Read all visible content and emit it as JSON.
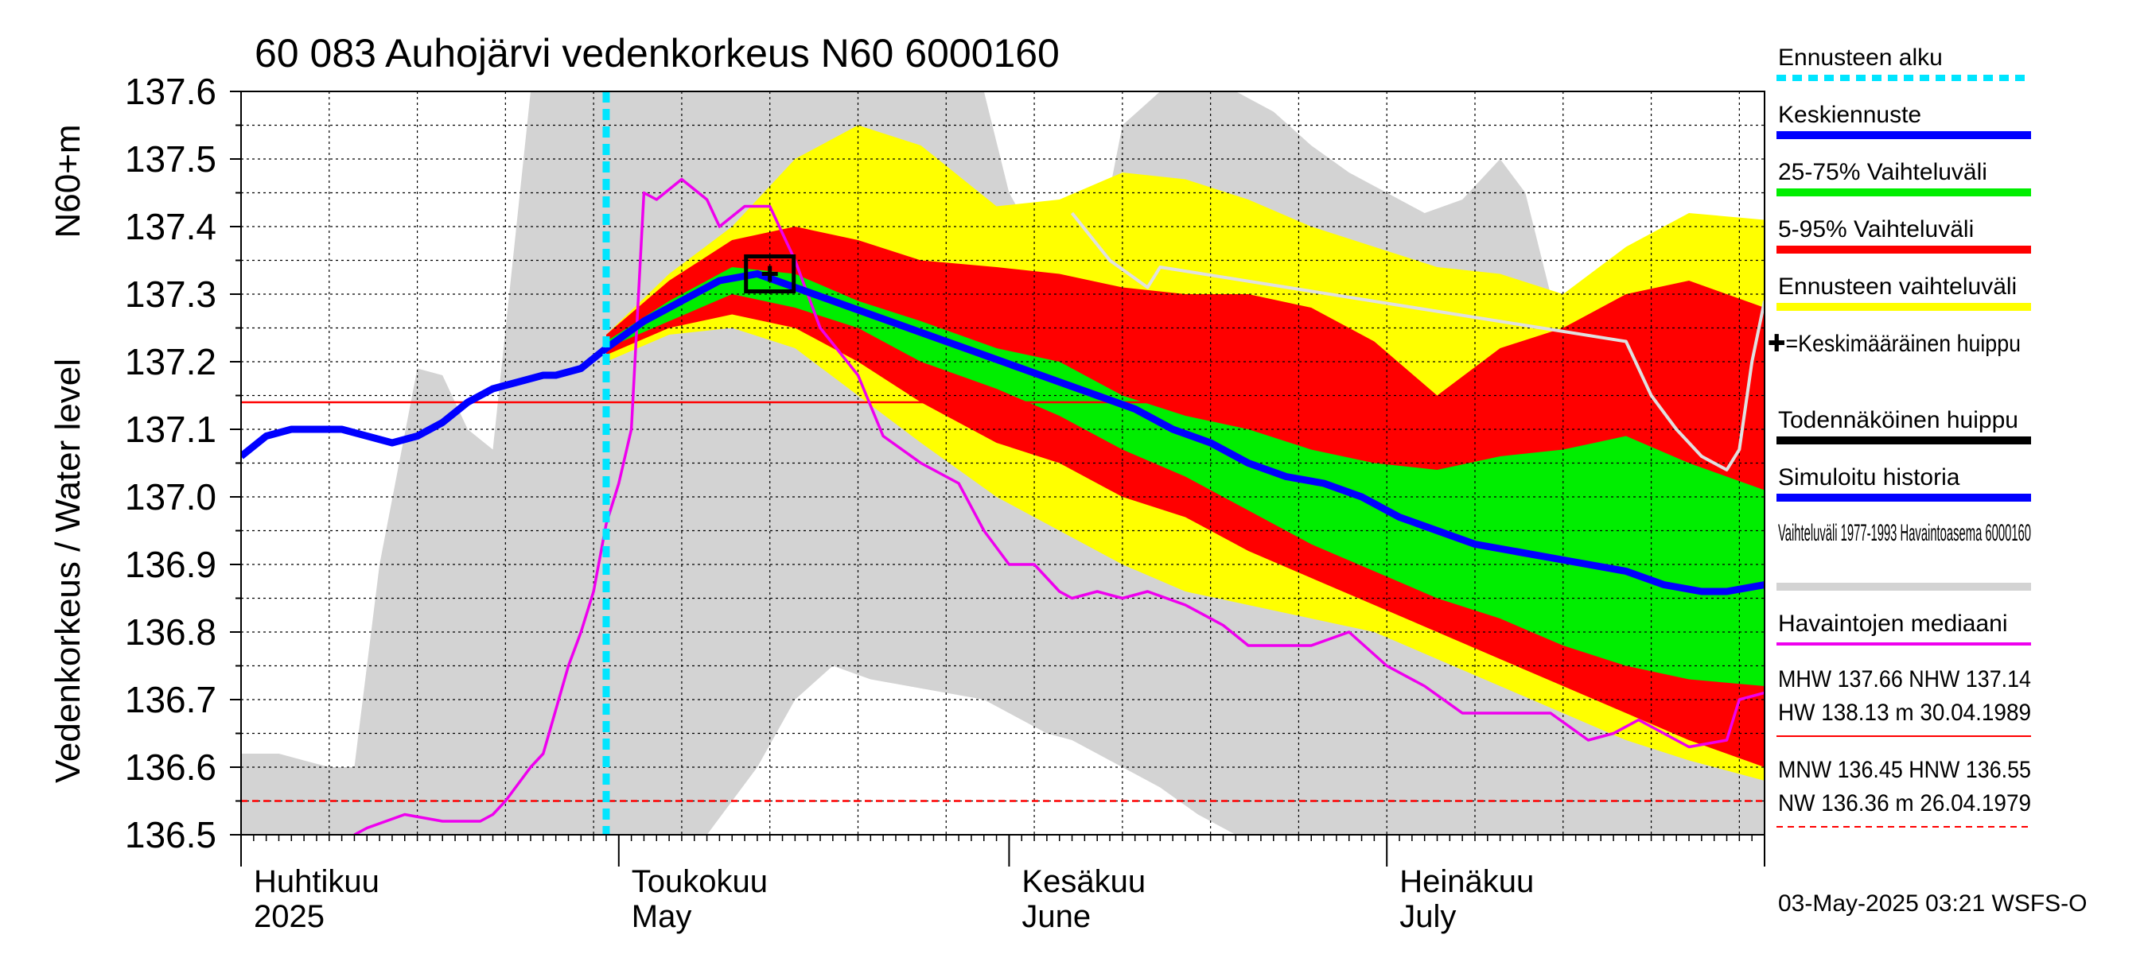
{
  "chart_data": {
    "type": "area",
    "title": "60 083 Auhojärvi vedenkorkeus N60 6000160",
    "ylabel_lines": [
      "Vedenkorkeus / Water level",
      "N60+m"
    ],
    "ylim": [
      136.5,
      137.6
    ],
    "yticks": [
      "137.6",
      "137.5",
      "137.4",
      "137.3",
      "137.2",
      "137.1",
      "137.0",
      "136.9",
      "136.8",
      "136.7",
      "136.6",
      "136.5"
    ],
    "x_start": "2025-04-01",
    "x_end": "2025-07-31",
    "month_labels": [
      {
        "date": "2025-04-01",
        "fi": "Huhtikuu",
        "en": "2025"
      },
      {
        "date": "2025-05-01",
        "fi": "Toukokuu",
        "en": "May"
      },
      {
        "date": "2025-06-01",
        "fi": "Kesäkuu",
        "en": "June"
      },
      {
        "date": "2025-07-01",
        "fi": "Heinäkuu",
        "en": "July"
      }
    ],
    "forecast_start": "2025-04-30",
    "reference_lines": {
      "NHW": 137.14,
      "HNW": 136.55
    },
    "peak_marker": {
      "date": "2025-05-13",
      "value": 137.33
    },
    "history_band": {
      "name": "Vaihteluväli 1977-1993 Havaintoasema 6000160",
      "x": [
        "2025-04-01",
        "2025-04-04",
        "2025-04-08",
        "2025-04-10",
        "2025-04-12",
        "2025-04-15",
        "2025-04-17",
        "2025-04-19",
        "2025-04-21",
        "2025-04-24",
        "2025-04-28",
        "2025-05-01",
        "2025-05-05",
        "2025-05-08",
        "2025-05-12",
        "2025-05-15",
        "2025-05-18",
        "2025-05-21",
        "2025-05-24",
        "2025-05-27",
        "2025-05-30",
        "2025-06-01",
        "2025-06-04",
        "2025-06-06",
        "2025-06-08",
        "2025-06-10",
        "2025-06-13",
        "2025-06-16",
        "2025-06-19",
        "2025-06-22",
        "2025-06-25",
        "2025-06-28",
        "2025-07-01",
        "2025-07-04",
        "2025-07-07",
        "2025-07-10",
        "2025-07-12",
        "2025-07-14",
        "2025-07-16",
        "2025-07-19",
        "2025-07-22",
        "2025-07-25",
        "2025-07-28",
        "2025-07-31"
      ],
      "upper": [
        136.62,
        136.62,
        136.6,
        136.6,
        136.9,
        137.19,
        137.18,
        137.1,
        137.07,
        137.6,
        137.6,
        137.6,
        137.6,
        137.6,
        137.6,
        137.6,
        137.6,
        137.6,
        137.6,
        137.6,
        137.6,
        137.45,
        137.35,
        137.31,
        137.36,
        137.55,
        137.6,
        137.6,
        137.6,
        137.57,
        137.52,
        137.48,
        137.45,
        137.42,
        137.44,
        137.5,
        137.45,
        137.3,
        137.25,
        137.25,
        137.25,
        137.25,
        137.26,
        137.27
      ],
      "lower": [
        136.5,
        136.5,
        136.5,
        136.5,
        136.5,
        136.5,
        136.5,
        136.5,
        136.5,
        136.5,
        136.5,
        136.5,
        136.5,
        136.5,
        136.6,
        136.7,
        136.75,
        136.73,
        136.72,
        136.71,
        136.7,
        136.68,
        136.65,
        136.64,
        136.62,
        136.6,
        136.57,
        136.53,
        136.5,
        136.5,
        136.5,
        136.5,
        136.5,
        136.5,
        136.5,
        136.5,
        136.5,
        136.5,
        136.5,
        136.5,
        136.5,
        136.5,
        136.5,
        136.5
      ]
    },
    "forecast_dates": [
      "2025-04-30",
      "2025-05-05",
      "2025-05-10",
      "2025-05-15",
      "2025-05-20",
      "2025-05-25",
      "2025-05-31",
      "2025-06-05",
      "2025-06-10",
      "2025-06-15",
      "2025-06-20",
      "2025-06-25",
      "2025-06-30",
      "2025-07-05",
      "2025-07-10",
      "2025-07-15",
      "2025-07-20",
      "2025-07-25",
      "2025-07-31"
    ],
    "bands": [
      {
        "name": "Ennusteen vaihteluväli",
        "color": "#ffff00",
        "upper": [
          137.24,
          137.33,
          137.4,
          137.5,
          137.55,
          137.52,
          137.43,
          137.44,
          137.48,
          137.47,
          137.44,
          137.4,
          137.37,
          137.34,
          137.33,
          137.3,
          137.37,
          137.42,
          137.41
        ],
        "lower": [
          137.2,
          137.24,
          137.25,
          137.22,
          137.15,
          137.08,
          137.0,
          136.95,
          136.9,
          136.86,
          136.84,
          136.82,
          136.8,
          136.76,
          136.72,
          136.68,
          136.64,
          136.61,
          136.58
        ]
      },
      {
        "name": "5-95% Vaihteluväli",
        "color": "#ff0000",
        "upper": [
          137.24,
          137.32,
          137.38,
          137.4,
          137.38,
          137.35,
          137.34,
          137.33,
          137.31,
          137.3,
          137.3,
          137.28,
          137.23,
          137.15,
          137.22,
          137.25,
          137.3,
          137.32,
          137.28
        ],
        "lower": [
          137.21,
          137.25,
          137.27,
          137.25,
          137.2,
          137.14,
          137.08,
          137.05,
          137.0,
          136.97,
          136.92,
          136.88,
          136.84,
          136.8,
          136.76,
          136.72,
          136.68,
          136.64,
          136.6
        ]
      },
      {
        "name": "25-75% Vaihteluväli",
        "color": "#00ee00",
        "upper": [
          137.23,
          137.29,
          137.34,
          137.33,
          137.29,
          137.26,
          137.22,
          137.2,
          137.15,
          137.12,
          137.1,
          137.07,
          137.05,
          137.04,
          137.06,
          137.07,
          137.09,
          137.05,
          137.01
        ],
        "lower": [
          137.22,
          137.26,
          137.3,
          137.28,
          137.25,
          137.2,
          137.16,
          137.12,
          137.07,
          137.03,
          136.98,
          136.93,
          136.89,
          136.85,
          136.82,
          136.78,
          136.75,
          136.73,
          136.72
        ]
      }
    ],
    "series": [
      {
        "name": "Havaintojen mediaani",
        "color": "#ee00ee",
        "x": [
          "2025-04-10",
          "2025-04-11",
          "2025-04-14",
          "2025-04-17",
          "2025-04-18",
          "2025-04-20",
          "2025-04-21",
          "2025-04-22",
          "2025-04-24",
          "2025-04-25",
          "2025-04-27",
          "2025-04-28",
          "2025-04-29",
          "2025-04-30",
          "2025-05-01",
          "2025-05-02",
          "2025-05-03",
          "2025-05-04",
          "2025-05-06",
          "2025-05-08",
          "2025-05-09",
          "2025-05-11",
          "2025-05-13",
          "2025-05-15",
          "2025-05-17",
          "2025-05-20",
          "2025-05-22",
          "2025-05-25",
          "2025-05-28",
          "2025-05-30",
          "2025-06-01",
          "2025-06-03",
          "2025-06-05",
          "2025-06-06",
          "2025-06-08",
          "2025-06-10",
          "2025-06-12",
          "2025-06-15",
          "2025-06-18",
          "2025-06-20",
          "2025-06-22",
          "2025-06-25",
          "2025-06-28",
          "2025-07-01",
          "2025-07-04",
          "2025-07-07",
          "2025-07-10",
          "2025-07-14",
          "2025-07-17",
          "2025-07-19",
          "2025-07-21",
          "2025-07-22",
          "2025-07-25",
          "2025-07-28",
          "2025-07-29",
          "2025-07-31"
        ],
        "y": [
          136.5,
          136.51,
          136.53,
          136.52,
          136.52,
          136.52,
          136.53,
          136.55,
          136.6,
          136.62,
          136.75,
          136.8,
          136.86,
          136.96,
          137.02,
          137.1,
          137.45,
          137.44,
          137.47,
          137.44,
          137.4,
          137.43,
          137.43,
          137.35,
          137.25,
          137.18,
          137.09,
          137.05,
          137.02,
          136.95,
          136.9,
          136.9,
          136.86,
          136.85,
          136.86,
          136.85,
          136.86,
          136.84,
          136.81,
          136.78,
          136.78,
          136.78,
          136.8,
          136.75,
          136.72,
          136.68,
          136.68,
          136.68,
          136.64,
          136.65,
          136.67,
          136.66,
          136.63,
          136.64,
          136.7,
          136.71
        ]
      },
      {
        "name": "Simuloitu historia",
        "color": "#0000ff",
        "x": [
          "2025-04-01",
          "2025-04-03",
          "2025-04-05",
          "2025-04-07",
          "2025-04-09",
          "2025-04-11",
          "2025-04-13",
          "2025-04-15",
          "2025-04-17",
          "2025-04-19",
          "2025-04-21",
          "2025-04-23",
          "2025-04-25",
          "2025-04-26",
          "2025-04-28",
          "2025-04-30"
        ],
        "y": [
          137.06,
          137.09,
          137.1,
          137.1,
          137.1,
          137.09,
          137.08,
          137.09,
          137.11,
          137.14,
          137.16,
          137.17,
          137.18,
          137.18,
          137.19,
          137.22
        ]
      },
      {
        "name": "Keskiennuste",
        "color": "#0000ff",
        "x": [
          "2025-04-30",
          "2025-05-03",
          "2025-05-06",
          "2025-05-09",
          "2025-05-12",
          "2025-05-15",
          "2025-05-18",
          "2025-05-21",
          "2025-05-24",
          "2025-05-27",
          "2025-05-30",
          "2025-06-02",
          "2025-06-05",
          "2025-06-08",
          "2025-06-11",
          "2025-06-14",
          "2025-06-17",
          "2025-06-20",
          "2025-06-23",
          "2025-06-26",
          "2025-06-29",
          "2025-07-02",
          "2025-07-05",
          "2025-07-08",
          "2025-07-11",
          "2025-07-14",
          "2025-07-17",
          "2025-07-20",
          "2025-07-23",
          "2025-07-26",
          "2025-07-28",
          "2025-07-31"
        ],
        "y": [
          137.22,
          137.26,
          137.29,
          137.32,
          137.33,
          137.31,
          137.29,
          137.27,
          137.25,
          137.23,
          137.21,
          137.19,
          137.17,
          137.15,
          137.13,
          137.1,
          137.08,
          137.05,
          137.03,
          137.02,
          137.0,
          136.97,
          136.95,
          136.93,
          136.92,
          136.91,
          136.9,
          136.89,
          136.87,
          136.86,
          136.86,
          136.87
        ]
      },
      {
        "name": "",
        "color": "#e0e0e0",
        "x": [
          "2025-06-06",
          "2025-06-09",
          "2025-06-12",
          "2025-06-13",
          "2025-07-20",
          "2025-07-22",
          "2025-07-24",
          "2025-07-26",
          "2025-07-28",
          "2025-07-29",
          "2025-07-30",
          "2025-07-31"
        ],
        "y": [
          137.42,
          137.35,
          137.31,
          137.34,
          137.23,
          137.15,
          137.1,
          137.06,
          137.04,
          137.07,
          137.2,
          137.29
        ]
      }
    ],
    "legend": {
      "placement": "right",
      "items": [
        {
          "label": "Ennusteen alku",
          "style": "dashed",
          "color": "#00e5ff"
        },
        {
          "label": "Keskiennuste",
          "style": "solid",
          "color": "#0000ff"
        },
        {
          "label": "25-75% Vaihteluväli",
          "style": "solid",
          "color": "#00ee00"
        },
        {
          "label": "5-95% Vaihteluväli",
          "style": "solid",
          "color": "#ff0000"
        },
        {
          "label": "Ennusteen vaihteluväli",
          "style": "solid",
          "color": "#ffff00"
        },
        {
          "label": "✚=Keskimääräinen huippu",
          "style": "none",
          "color": "#000000"
        },
        {
          "label": "Todennäköinen huippu",
          "style": "solid",
          "color": "#000000"
        },
        {
          "label": "Simuloitu historia",
          "style": "solid",
          "color": "#0000ff"
        },
        {
          "label": "Vaihteluväli 1977-1993 Havaintoasema 6000160",
          "style": "solid",
          "color": "#d3d3d3"
        },
        {
          "label": "Havaintojen mediaani",
          "style": "solid",
          "color": "#ee00ee"
        }
      ]
    },
    "stats": {
      "high": [
        "MHW 137.66 NHW 137.14",
        "HW 138.13 m 30.04.1989"
      ],
      "low": [
        "MNW 136.45 HNW 136.55",
        "NW 136.36 m 26.04.1979"
      ]
    },
    "footer": "03-May-2025 03:21 WSFS-O"
  }
}
